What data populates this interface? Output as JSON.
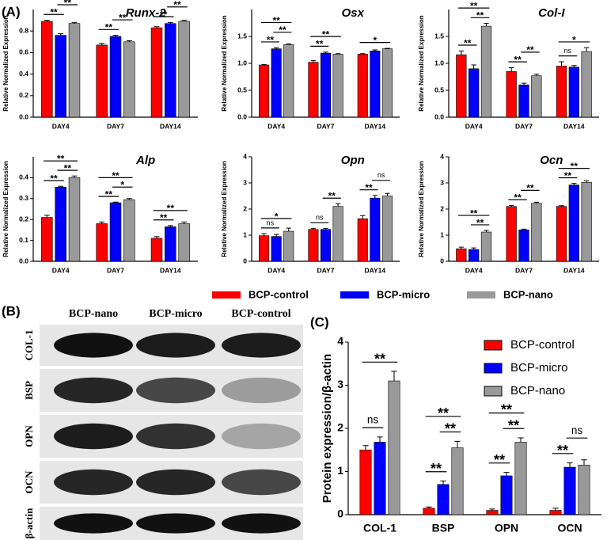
{
  "panels": {
    "a": "(A)",
    "b": "(B)",
    "c": "(C)"
  },
  "blot": {
    "columns": [
      "BCP-nano",
      "BCP-micro",
      "BCP-control"
    ],
    "rows": [
      "COL-1",
      "BSP",
      "OPN",
      "OCN",
      "β-actin"
    ]
  },
  "chart_data": [
    {
      "type": "bar",
      "title": "Runx-2",
      "ylabel": "Relative Normalized Expression",
      "categories": [
        "DAY4",
        "DAY7",
        "DAY14"
      ],
      "series": [
        {
          "name": "BCP-control",
          "color": "#ff0000",
          "values": [
            0.89,
            0.67,
            0.83
          ],
          "errors": [
            0.01,
            0.015,
            0.01
          ]
        },
        {
          "name": "BCP-micro",
          "color": "#0000ff",
          "values": [
            0.76,
            0.75,
            0.87
          ],
          "errors": [
            0.015,
            0.01,
            0.01
          ]
        },
        {
          "name": "BCP-nano",
          "color": "#999999",
          "values": [
            0.87,
            0.7,
            0.89
          ],
          "errors": [
            0.01,
            0.01,
            0.01
          ]
        }
      ],
      "ylim": [
        0,
        1.0
      ],
      "yticks": [
        {
          "value": 0,
          "label": "0.0"
        },
        0.2,
        0.4,
        0.6,
        0.8
      ],
      "annotations": [
        {
          "group": 0,
          "pair": [
            0,
            1
          ],
          "text": "**"
        },
        {
          "group": 0,
          "pair": [
            1,
            2
          ],
          "text": "**"
        },
        {
          "group": 1,
          "pair": [
            0,
            1
          ],
          "text": "**"
        },
        {
          "group": 1,
          "pair": [
            1,
            2
          ],
          "text": "**"
        },
        {
          "group": 2,
          "pair": [
            0,
            1
          ],
          "text": "**"
        },
        {
          "group": 2,
          "pair": [
            1,
            2
          ],
          "text": "**"
        },
        {
          "group": 2,
          "pair": [
            0,
            2
          ],
          "text": "**"
        }
      ]
    },
    {
      "type": "bar",
      "title": "Osx",
      "ylabel": "Relative Normalized Expression",
      "categories": [
        "DAY4",
        "DAY7",
        "DAY14"
      ],
      "series": [
        {
          "color": "#ff0000",
          "values": [
            0.97,
            1.02,
            1.17
          ],
          "errors": [
            0.01,
            0.03,
            0.01
          ]
        },
        {
          "color": "#0000ff",
          "values": [
            1.27,
            1.19,
            1.23
          ],
          "errors": [
            0.02,
            0.02,
            0.02
          ]
        },
        {
          "color": "#999999",
          "values": [
            1.35,
            1.17,
            1.27
          ],
          "errors": [
            0.01,
            0.01,
            0.01
          ]
        }
      ],
      "ylim": [
        0,
        2.0
      ],
      "yticks": [
        {
          "value": 0,
          "label": "0.0"
        },
        0.5,
        {
          "value": 1,
          "label": "1.0"
        },
        1.5
      ],
      "annotations": [
        {
          "group": 0,
          "pair": [
            0,
            1
          ],
          "text": "**"
        },
        {
          "group": 0,
          "pair": [
            1,
            2
          ],
          "text": "**"
        },
        {
          "group": 0,
          "pair": [
            0,
            2
          ],
          "text": "**"
        },
        {
          "group": 1,
          "pair": [
            0,
            1
          ],
          "text": "**"
        },
        {
          "group": 1,
          "pair": [
            0,
            2
          ],
          "text": "**"
        },
        {
          "group": 2,
          "pair": [
            0,
            2
          ],
          "text": "*"
        }
      ]
    },
    {
      "type": "bar",
      "title": "Col-I",
      "ylabel": "Relative Normalized Expression",
      "categories": [
        "DAY4",
        "DAY7",
        "DAY14"
      ],
      "series": [
        {
          "color": "#ff0000",
          "values": [
            1.16,
            0.85,
            0.95
          ],
          "errors": [
            0.07,
            0.07,
            0.08
          ]
        },
        {
          "color": "#0000ff",
          "values": [
            0.9,
            0.6,
            0.93
          ],
          "errors": [
            0.07,
            0.03,
            0.03
          ]
        },
        {
          "color": "#999999",
          "values": [
            1.69,
            0.77,
            1.22
          ],
          "errors": [
            0.05,
            0.03,
            0.07
          ]
        }
      ],
      "ylim": [
        0,
        2.0
      ],
      "yticks": [
        {
          "value": 0,
          "label": "0.0"
        },
        0.5,
        {
          "value": 1,
          "label": "1.0"
        },
        1.5
      ],
      "annotations": [
        {
          "group": 0,
          "pair": [
            0,
            1
          ],
          "text": "**"
        },
        {
          "group": 0,
          "pair": [
            1,
            2
          ],
          "text": "**"
        },
        {
          "group": 0,
          "pair": [
            0,
            2
          ],
          "text": "**"
        },
        {
          "group": 1,
          "pair": [
            0,
            1
          ],
          "text": "**"
        },
        {
          "group": 1,
          "pair": [
            1,
            2
          ],
          "text": "**"
        },
        {
          "group": 2,
          "pair": [
            0,
            1
          ],
          "text": "ns"
        },
        {
          "group": 2,
          "pair": [
            0,
            2
          ],
          "text": "*"
        }
      ]
    },
    {
      "type": "bar",
      "title": "Alp",
      "ylabel": "Relative Normalized Expression",
      "categories": [
        "DAY4",
        "DAY7",
        "DAY14"
      ],
      "series": [
        {
          "color": "#ff0000",
          "values": [
            0.21,
            0.18,
            0.11
          ],
          "errors": [
            0.01,
            0.008,
            0.008
          ]
        },
        {
          "color": "#0000ff",
          "values": [
            0.355,
            0.28,
            0.165
          ],
          "errors": [
            0.004,
            0.003,
            0.006
          ]
        },
        {
          "color": "#999999",
          "values": [
            0.4,
            0.295,
            0.18
          ],
          "errors": [
            0.008,
            0.005,
            0.008
          ]
        }
      ],
      "ylim": [
        0,
        0.5
      ],
      "yticks": [
        {
          "value": 0,
          "label": "0.0"
        },
        0.1,
        0.2,
        0.3,
        0.4
      ],
      "annotations": [
        {
          "group": 0,
          "pair": [
            0,
            1
          ],
          "text": "**"
        },
        {
          "group": 0,
          "pair": [
            1,
            2
          ],
          "text": "**"
        },
        {
          "group": 0,
          "pair": [
            0,
            2
          ],
          "text": "**"
        },
        {
          "group": 1,
          "pair": [
            0,
            1
          ],
          "text": "**"
        },
        {
          "group": 1,
          "pair": [
            1,
            2
          ],
          "text": "*"
        },
        {
          "group": 1,
          "pair": [
            0,
            2
          ],
          "text": "**"
        },
        {
          "group": 2,
          "pair": [
            0,
            1
          ],
          "text": "**"
        },
        {
          "group": 2,
          "pair": [
            0,
            2
          ],
          "text": "**"
        }
      ]
    },
    {
      "type": "bar",
      "title": "Opn",
      "ylabel": "Relative Normalized Expression",
      "categories": [
        "DAY4",
        "DAY7",
        "DAY14"
      ],
      "series": [
        {
          "color": "#ff0000",
          "values": [
            0.98,
            1.22,
            1.63
          ],
          "errors": [
            0.08,
            0.04,
            0.12
          ]
        },
        {
          "color": "#0000ff",
          "values": [
            0.95,
            1.22,
            2.42
          ],
          "errors": [
            0.08,
            0.04,
            0.1
          ]
        },
        {
          "color": "#999999",
          "values": [
            1.15,
            2.1,
            2.5
          ],
          "errors": [
            0.12,
            0.1,
            0.1
          ]
        }
      ],
      "ylim": [
        0,
        4
      ],
      "yticks": [
        0,
        1,
        2,
        3,
        4
      ],
      "annotations": [
        {
          "group": 0,
          "pair": [
            0,
            1
          ],
          "text": "ns"
        },
        {
          "group": 0,
          "pair": [
            0,
            2
          ],
          "text": "*"
        },
        {
          "group": 1,
          "pair": [
            0,
            1
          ],
          "text": "ns"
        },
        {
          "group": 1,
          "pair": [
            1,
            2
          ],
          "text": "**"
        },
        {
          "group": 2,
          "pair": [
            0,
            1
          ],
          "text": "**"
        },
        {
          "group": 2,
          "pair": [
            1,
            2
          ],
          "text": "ns"
        }
      ]
    },
    {
      "type": "bar",
      "title": "Ocn",
      "ylabel": "Relative Normalized Expression",
      "categories": [
        "DAY4",
        "DAY7",
        "DAY14"
      ],
      "series": [
        {
          "color": "#ff0000",
          "values": [
            0.48,
            2.1,
            2.1
          ],
          "errors": [
            0.06,
            0.04,
            0.03
          ]
        },
        {
          "color": "#0000ff",
          "values": [
            0.45,
            1.2,
            2.92
          ],
          "errors": [
            0.06,
            0.03,
            0.06
          ]
        },
        {
          "color": "#999999",
          "values": [
            1.12,
            2.22,
            3.02
          ],
          "errors": [
            0.06,
            0.04,
            0.06
          ]
        }
      ],
      "ylim": [
        0,
        4
      ],
      "yticks": [
        0,
        1,
        2,
        3,
        4
      ],
      "annotations": [
        {
          "group": 0,
          "pair": [
            1,
            2
          ],
          "text": "**"
        },
        {
          "group": 0,
          "pair": [
            0,
            2
          ],
          "text": "**"
        },
        {
          "group": 1,
          "pair": [
            0,
            1
          ],
          "text": "**"
        },
        {
          "group": 1,
          "pair": [
            1,
            2
          ],
          "text": "**"
        },
        {
          "group": 2,
          "pair": [
            0,
            1
          ],
          "text": "**"
        },
        {
          "group": 2,
          "pair": [
            0,
            2
          ],
          "text": "**"
        }
      ]
    },
    {
      "type": "bar",
      "ylabel": "Protein expression/β-actin",
      "categories": [
        "COL-1",
        "BSP",
        "OPN",
        "OCN"
      ],
      "legend": "top-right",
      "series": [
        {
          "name": "BCP-control",
          "color": "#ff0000",
          "values": [
            1.5,
            0.15,
            0.1,
            0.1
          ],
          "errors": [
            0.1,
            0.03,
            0.03,
            0.05
          ]
        },
        {
          "name": "BCP-micro",
          "color": "#0000ff",
          "values": [
            1.68,
            0.7,
            0.9,
            1.1
          ],
          "errors": [
            0.12,
            0.08,
            0.08,
            0.1
          ]
        },
        {
          "name": "BCP-nano",
          "color": "#999999",
          "values": [
            3.1,
            1.55,
            1.68,
            1.15
          ],
          "errors": [
            0.22,
            0.15,
            0.1,
            0.12
          ]
        }
      ],
      "ylim": [
        0,
        4
      ],
      "yticks": [
        0,
        1,
        2,
        3,
        4
      ],
      "annotations": [
        {
          "group": 0,
          "pair": [
            0,
            1
          ],
          "text": "ns"
        },
        {
          "group": 0,
          "pair": [
            0,
            2
          ],
          "text": "**"
        },
        {
          "group": 1,
          "pair": [
            0,
            1
          ],
          "text": "**"
        },
        {
          "group": 1,
          "pair": [
            1,
            2
          ],
          "text": "**"
        },
        {
          "group": 1,
          "pair": [
            0,
            2
          ],
          "text": "**"
        },
        {
          "group": 2,
          "pair": [
            0,
            1
          ],
          "text": "**"
        },
        {
          "group": 2,
          "pair": [
            1,
            2
          ],
          "text": "**"
        },
        {
          "group": 2,
          "pair": [
            0,
            2
          ],
          "text": "**"
        },
        {
          "group": 3,
          "pair": [
            0,
            1
          ],
          "text": "**"
        },
        {
          "group": 3,
          "pair": [
            1,
            2
          ],
          "text": "ns"
        }
      ]
    }
  ]
}
